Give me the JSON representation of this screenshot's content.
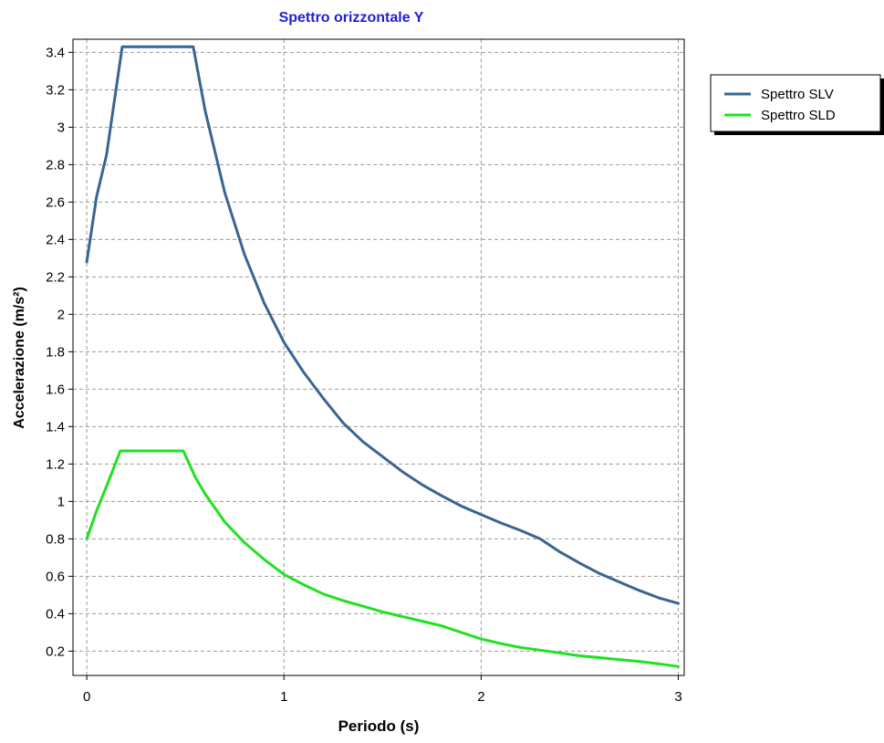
{
  "chart_data": {
    "type": "line",
    "title": "Spettro orizzontale Y",
    "xlabel": "Periodo (s)",
    "ylabel": "Accelerazione (m/s²)",
    "xlim": [
      -0.07,
      3.03
    ],
    "ylim": [
      0.07,
      3.47
    ],
    "x_ticks": [
      0,
      1,
      2,
      3
    ],
    "y_ticks": [
      0.2,
      0.4,
      0.6,
      0.8,
      1,
      1.2,
      1.4,
      1.6,
      1.8,
      2,
      2.2,
      2.4,
      2.6,
      2.8,
      3,
      3.2,
      3.4
    ],
    "grid": true,
    "legend": "top-right, outside plot",
    "colors": {
      "title": "#1f1fd6",
      "axis_text": "#000000",
      "grid": "#9a9a9a"
    },
    "series": [
      {
        "name": "Spettro SLV",
        "color": "#3a6591",
        "x": [
          0,
          0.05,
          0.1,
          0.18,
          0.54,
          0.6,
          0.7,
          0.8,
          0.9,
          1.0,
          1.1,
          1.2,
          1.3,
          1.4,
          1.5,
          1.6,
          1.7,
          1.8,
          1.9,
          2.0,
          2.1,
          2.2,
          2.3,
          2.4,
          2.5,
          2.6,
          2.7,
          2.8,
          2.9,
          3.0
        ],
        "y": [
          2.28,
          2.63,
          2.85,
          3.43,
          3.43,
          3.09,
          2.65,
          2.32,
          2.06,
          1.85,
          1.69,
          1.55,
          1.42,
          1.32,
          1.24,
          1.16,
          1.09,
          1.03,
          0.975,
          0.93,
          0.885,
          0.845,
          0.8,
          0.73,
          0.67,
          0.615,
          0.57,
          0.525,
          0.485,
          0.455
        ]
      },
      {
        "name": "Spettro SLD",
        "color": "#22e022",
        "x": [
          0,
          0.05,
          0.1,
          0.17,
          0.49,
          0.55,
          0.6,
          0.7,
          0.8,
          0.9,
          1.0,
          1.1,
          1.2,
          1.3,
          1.4,
          1.5,
          1.6,
          1.7,
          1.8,
          1.9,
          2.0,
          2.1,
          2.2,
          2.3,
          2.4,
          2.5,
          2.6,
          2.7,
          2.8,
          2.9,
          3.0
        ],
        "y": [
          0.8,
          0.95,
          1.08,
          1.27,
          1.27,
          1.13,
          1.04,
          0.89,
          0.78,
          0.69,
          0.61,
          0.555,
          0.505,
          0.47,
          0.44,
          0.41,
          0.385,
          0.36,
          0.335,
          0.3,
          0.265,
          0.24,
          0.22,
          0.205,
          0.19,
          0.175,
          0.165,
          0.155,
          0.145,
          0.132,
          0.118
        ]
      }
    ]
  }
}
